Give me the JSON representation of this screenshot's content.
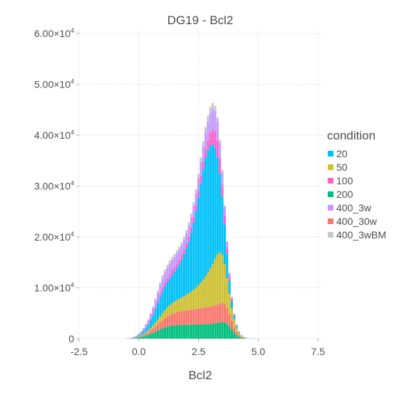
{
  "chart_data": {
    "type": "bar",
    "stacked": true,
    "title": "DG19 - Bcl2",
    "xlabel": "Bcl2",
    "ylabel": "",
    "xlim": [
      -2.5,
      7.7
    ],
    "ylim": [
      0,
      61000
    ],
    "x_ticks": [
      {
        "value": -2.5,
        "label": "-2.5"
      },
      {
        "value": 0,
        "label": "0.0"
      },
      {
        "value": 2.5,
        "label": "2.5"
      },
      {
        "value": 5,
        "label": "5.0"
      },
      {
        "value": 7.5,
        "label": "7.5"
      }
    ],
    "y_ticks": [
      {
        "value": 0,
        "mant": "0",
        "exp": ""
      },
      {
        "value": 10000,
        "mant": "1.00×10",
        "exp": "4"
      },
      {
        "value": 20000,
        "mant": "2.00×10",
        "exp": "4"
      },
      {
        "value": 30000,
        "mant": "3.00×10",
        "exp": "4"
      },
      {
        "value": 40000,
        "mant": "4.00×10",
        "exp": "4"
      },
      {
        "value": 50000,
        "mant": "5.00×10",
        "exp": "4"
      },
      {
        "value": 60000,
        "mant": "6.00×10",
        "exp": "4"
      }
    ],
    "grid": true,
    "legend_position": "right",
    "legend_title": "condition",
    "bin_width": 0.1,
    "x": [
      -0.5,
      -0.4,
      -0.3,
      -0.2,
      -0.1,
      0.0,
      0.1,
      0.2,
      0.3,
      0.4,
      0.5,
      0.6,
      0.7,
      0.8,
      0.9,
      1.0,
      1.1,
      1.2,
      1.3,
      1.4,
      1.5,
      1.6,
      1.7,
      1.8,
      1.9,
      2.0,
      2.1,
      2.2,
      2.3,
      2.4,
      2.5,
      2.6,
      2.7,
      2.8,
      2.9,
      3.0,
      3.1,
      3.2,
      3.3,
      3.4,
      3.5,
      3.6,
      3.7,
      3.8,
      3.9,
      4.0,
      4.1,
      4.2,
      4.3,
      4.4,
      4.5,
      4.6,
      4.7,
      4.8,
      4.9,
      5.0
    ],
    "series": [
      {
        "name": "200",
        "color": "#00BF7D",
        "values": [
          15,
          30,
          60,
          100,
          160,
          230,
          330,
          460,
          610,
          780,
          960,
          1160,
          1370,
          1590,
          1810,
          2020,
          2200,
          2360,
          2480,
          2570,
          2630,
          2670,
          2700,
          2720,
          2740,
          2750,
          2760,
          2770,
          2780,
          2790,
          2800,
          2820,
          2840,
          2860,
          2880,
          2900,
          2930,
          3000,
          3100,
          3200,
          3300,
          3200,
          2900,
          2400,
          1800,
          1200,
          700,
          380,
          200,
          100,
          50,
          25,
          12,
          6,
          3,
          0
        ]
      },
      {
        "name": "400_30w",
        "color": "#F8766D",
        "values": [
          10,
          20,
          40,
          60,
          100,
          150,
          220,
          300,
          400,
          520,
          660,
          820,
          1010,
          1200,
          1400,
          1600,
          1800,
          1980,
          2150,
          2300,
          2420,
          2520,
          2600,
          2680,
          2750,
          2820,
          2880,
          2940,
          3000,
          3060,
          3120,
          3180,
          3240,
          3300,
          3350,
          3400,
          3450,
          3520,
          3600,
          3700,
          3800,
          3600,
          3100,
          2400,
          1700,
          1100,
          650,
          350,
          180,
          90,
          45,
          20,
          10,
          5,
          2,
          0
        ]
      },
      {
        "name": "50",
        "color": "#CDC032",
        "values": [
          5,
          10,
          20,
          35,
          55,
          80,
          120,
          170,
          240,
          330,
          440,
          580,
          760,
          960,
          1180,
          1400,
          1600,
          1780,
          1950,
          2100,
          2250,
          2400,
          2550,
          2700,
          2880,
          3080,
          3300,
          3550,
          3850,
          4200,
          4600,
          5050,
          5550,
          6100,
          6750,
          7500,
          8300,
          9200,
          9900,
          10100,
          9300,
          7800,
          5900,
          4000,
          2500,
          1500,
          850,
          450,
          220,
          110,
          55,
          25,
          12,
          6,
          3,
          0
        ]
      },
      {
        "name": "20",
        "color": "#00C0F9",
        "values": [
          10,
          20,
          40,
          80,
          140,
          230,
          360,
          540,
          780,
          1100,
          1500,
          2000,
          2600,
          3200,
          3800,
          4300,
          4700,
          5000,
          5300,
          5600,
          5900,
          6300,
          6800,
          7400,
          8200,
          9100,
          10200,
          11500,
          13100,
          15000,
          17200,
          19500,
          21600,
          23200,
          24000,
          24200,
          23500,
          21800,
          19000,
          15400,
          11500,
          7800,
          4800,
          2700,
          1400,
          700,
          330,
          150,
          70,
          30,
          14,
          6,
          3,
          1,
          0,
          0
        ]
      },
      {
        "name": "100",
        "color": "#FF61C9",
        "values": [
          3,
          5,
          10,
          20,
          30,
          50,
          80,
          120,
          170,
          230,
          300,
          380,
          470,
          560,
          640,
          710,
          760,
          800,
          830,
          860,
          880,
          900,
          920,
          940,
          970,
          1000,
          1040,
          1090,
          1150,
          1230,
          1330,
          1450,
          1600,
          1800,
          2100,
          2500,
          2900,
          3200,
          3300,
          3000,
          2400,
          1800,
          1200,
          750,
          420,
          220,
          110,
          50,
          25,
          12,
          6,
          3,
          1,
          0,
          0,
          0
        ]
      },
      {
        "name": "400_3w",
        "color": "#C49AFF",
        "values": [
          10,
          20,
          40,
          70,
          120,
          190,
          280,
          400,
          550,
          720,
          900,
          1100,
          1300,
          1500,
          1700,
          1850,
          1950,
          2000,
          2020,
          2020,
          2000,
          1980,
          1960,
          1960,
          1970,
          2000,
          2050,
          2120,
          2220,
          2350,
          2500,
          2700,
          2950,
          3250,
          3600,
          3900,
          4100,
          4050,
          3700,
          3100,
          2400,
          1700,
          1100,
          650,
          350,
          180,
          90,
          40,
          20,
          10,
          5,
          2,
          1,
          0,
          0,
          0
        ]
      },
      {
        "name": "400_3wBM",
        "color": "#C9C9C9",
        "values": [
          2,
          5,
          10,
          20,
          35,
          55,
          80,
          110,
          150,
          200,
          260,
          330,
          400,
          470,
          530,
          580,
          610,
          620,
          620,
          610,
          600,
          590,
          580,
          580,
          590,
          610,
          640,
          680,
          730,
          790,
          860,
          940,
          1030,
          1120,
          1180,
          1200,
          1160,
          1050,
          880,
          680,
          480,
          320,
          200,
          120,
          65,
          35,
          18,
          8,
          4,
          2,
          1,
          0,
          0,
          0,
          0,
          0
        ]
      }
    ],
    "legend_order": [
      "20",
      "50",
      "100",
      "200",
      "400_3w",
      "400_30w",
      "400_3wBM"
    ]
  }
}
